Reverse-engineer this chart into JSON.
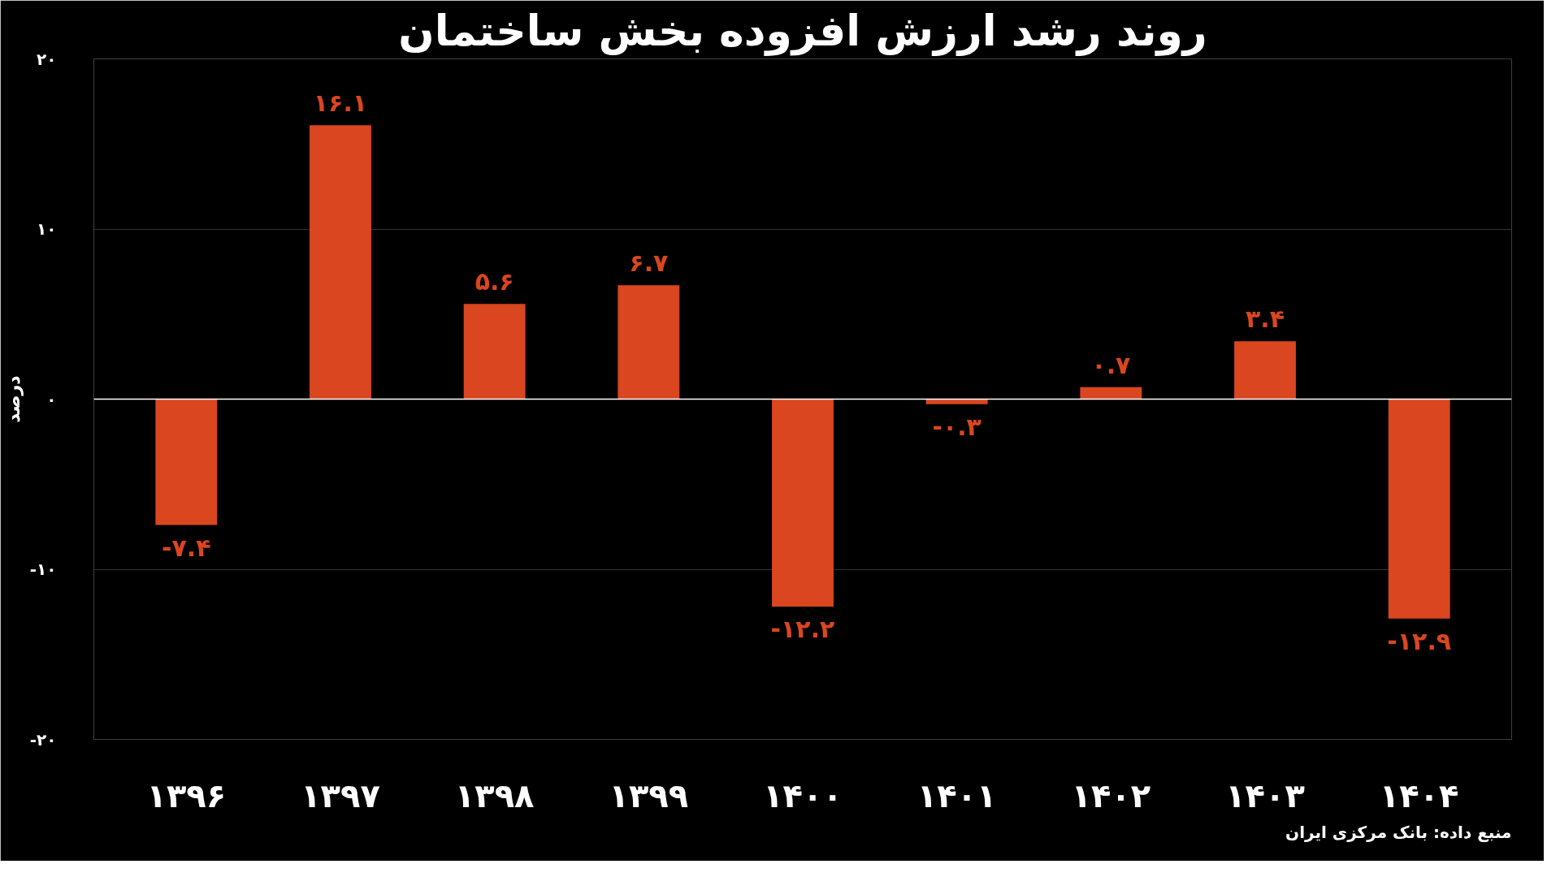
{
  "chart_data": {
    "type": "bar",
    "title": "روند رشد ارزش افزوده بخش ساختمان",
    "ylabel": "درصد",
    "categories": [
      "۱۳۹۶",
      "۱۳۹۷",
      "۱۳۹۸",
      "۱۳۹۹",
      "۱۴۰۰",
      "۱۴۰۱",
      "۱۴۰۲",
      "۱۴۰۳",
      "۱۴۰۴"
    ],
    "values": [
      -7.4,
      16.1,
      5.6,
      6.7,
      -12.2,
      -0.3,
      0.7,
      3.4,
      -12.9
    ],
    "value_labels": [
      "-۷.۴",
      "۱۶.۱",
      "۵.۶",
      "۶.۷",
      "-۱۲.۲",
      "-۰.۳",
      "۰.۷",
      "۳.۴",
      "-۱۲.۹"
    ],
    "color": "#d9461f",
    "ylim": [
      -20,
      20
    ],
    "yticks": [
      {
        "value": -20,
        "label": "-۲۰"
      },
      {
        "value": -10,
        "label": "-۱۰"
      },
      {
        "value": 0,
        "label": "۰"
      },
      {
        "value": 10,
        "label": "۱۰"
      },
      {
        "value": 20,
        "label": "۲۰"
      }
    ],
    "grid": "y",
    "ref_lines": [
      {
        "axis": "y",
        "value": 0,
        "color": "#ffffff"
      }
    ],
    "annotations": [
      "منبع داده: بانک مرکزی ایران"
    ]
  }
}
